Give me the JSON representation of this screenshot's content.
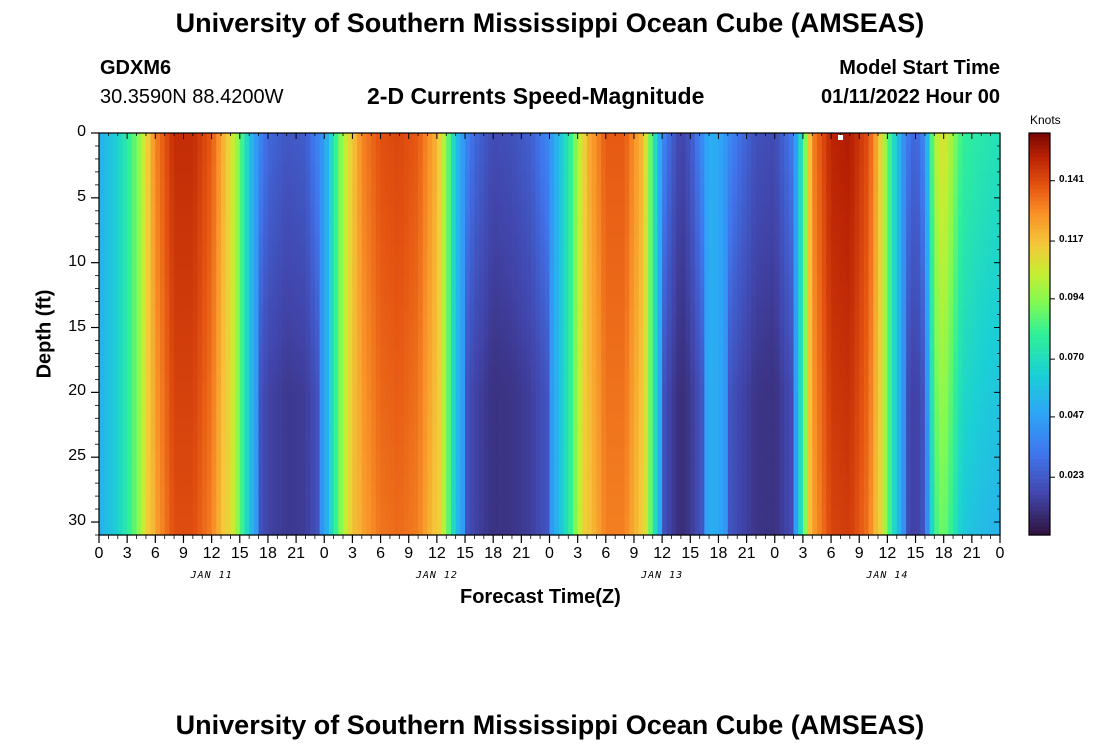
{
  "page_title": "University of Southern Mississippi Ocean Cube (AMSEAS)",
  "footer_title": "University of Southern Mississippi Ocean Cube (AMSEAS)",
  "station": {
    "id": "GDXM6",
    "coords": "30.3590N  88.4200W"
  },
  "model_start": {
    "label": "Model Start Time",
    "value": "01/11/2022 Hour 00"
  },
  "chart_data": {
    "type": "heatmap",
    "title": "2-D Currents Speed-Magnitude",
    "xlabel": "Forecast Time(Z)",
    "ylabel": "Depth (ft)",
    "x_range_hours": [
      0,
      96
    ],
    "y_range_ft": [
      0,
      31
    ],
    "x_tick_labels": [
      "0",
      "3",
      "6",
      "9",
      "12",
      "15",
      "18",
      "21",
      "0",
      "3",
      "6",
      "9",
      "12",
      "15",
      "18",
      "21",
      "0",
      "3",
      "6",
      "9",
      "12",
      "15",
      "18",
      "21",
      "0",
      "3",
      "6",
      "9",
      "12",
      "15",
      "18",
      "21",
      "0"
    ],
    "y_ticks": [
      0,
      5,
      10,
      15,
      20,
      25,
      30
    ],
    "day_labels": [
      {
        "text": "JAN 11",
        "hour": 12
      },
      {
        "text": "JAN 12",
        "hour": 36
      },
      {
        "text": "JAN 13",
        "hour": 60
      },
      {
        "text": "JAN 14",
        "hour": 84
      }
    ],
    "colorbar": {
      "unit": "Knots",
      "min": 0.0,
      "max": 0.16,
      "ticks": [
        "0.141",
        "0.117",
        "0.094",
        "0.070",
        "0.047",
        "0.023"
      ],
      "tick_values": [
        0.141,
        0.117,
        0.094,
        0.07,
        0.047,
        0.023
      ],
      "colormap": "turbo"
    },
    "surface_speed_profile": [
      {
        "hour": 0,
        "speed": 0.052
      },
      {
        "hour": 2,
        "speed": 0.065
      },
      {
        "hour": 4,
        "speed": 0.09
      },
      {
        "hour": 6,
        "speed": 0.13
      },
      {
        "hour": 8,
        "speed": 0.148
      },
      {
        "hour": 10,
        "speed": 0.148
      },
      {
        "hour": 12,
        "speed": 0.138
      },
      {
        "hour": 14,
        "speed": 0.11
      },
      {
        "hour": 15,
        "speed": 0.09
      },
      {
        "hour": 16,
        "speed": 0.06
      },
      {
        "hour": 17,
        "speed": 0.04
      },
      {
        "hour": 18,
        "speed": 0.028
      },
      {
        "hour": 20,
        "speed": 0.022
      },
      {
        "hour": 22,
        "speed": 0.024
      },
      {
        "hour": 24,
        "speed": 0.045
      },
      {
        "hour": 25,
        "speed": 0.075
      },
      {
        "hour": 26,
        "speed": 0.1
      },
      {
        "hour": 28,
        "speed": 0.13
      },
      {
        "hour": 30,
        "speed": 0.14
      },
      {
        "hour": 32,
        "speed": 0.142
      },
      {
        "hour": 34,
        "speed": 0.138
      },
      {
        "hour": 36,
        "speed": 0.12
      },
      {
        "hour": 37,
        "speed": 0.095
      },
      {
        "hour": 38,
        "speed": 0.06
      },
      {
        "hour": 39,
        "speed": 0.04
      },
      {
        "hour": 40,
        "speed": 0.028
      },
      {
        "hour": 42,
        "speed": 0.018
      },
      {
        "hour": 44,
        "speed": 0.02
      },
      {
        "hour": 46,
        "speed": 0.025
      },
      {
        "hour": 48,
        "speed": 0.04
      },
      {
        "hour": 50,
        "speed": 0.075
      },
      {
        "hour": 52,
        "speed": 0.12
      },
      {
        "hour": 54,
        "speed": 0.138
      },
      {
        "hour": 56,
        "speed": 0.138
      },
      {
        "hour": 58,
        "speed": 0.118
      },
      {
        "hour": 59,
        "speed": 0.08
      },
      {
        "hour": 60,
        "speed": 0.04
      },
      {
        "hour": 61,
        "speed": 0.025
      },
      {
        "hour": 62,
        "speed": 0.015
      },
      {
        "hour": 63,
        "speed": 0.022
      },
      {
        "hour": 64,
        "speed": 0.036
      },
      {
        "hour": 65,
        "speed": 0.052
      },
      {
        "hour": 66,
        "speed": 0.05
      },
      {
        "hour": 68,
        "speed": 0.032
      },
      {
        "hour": 70,
        "speed": 0.02
      },
      {
        "hour": 72,
        "speed": 0.018
      },
      {
        "hour": 74,
        "speed": 0.035
      },
      {
        "hour": 75,
        "speed": 0.08
      },
      {
        "hour": 76,
        "speed": 0.13
      },
      {
        "hour": 78,
        "speed": 0.15
      },
      {
        "hour": 80,
        "speed": 0.152
      },
      {
        "hour": 82,
        "speed": 0.14
      },
      {
        "hour": 83,
        "speed": 0.12
      },
      {
        "hour": 84,
        "speed": 0.09
      },
      {
        "hour": 85,
        "speed": 0.06
      },
      {
        "hour": 86,
        "speed": 0.035
      },
      {
        "hour": 87,
        "speed": 0.025
      },
      {
        "hour": 88,
        "speed": 0.04
      },
      {
        "hour": 89,
        "speed": 0.1
      },
      {
        "hour": 90,
        "speed": 0.11
      },
      {
        "hour": 92,
        "speed": 0.08
      },
      {
        "hour": 94,
        "speed": 0.075
      },
      {
        "hour": 96,
        "speed": 0.072
      }
    ]
  }
}
